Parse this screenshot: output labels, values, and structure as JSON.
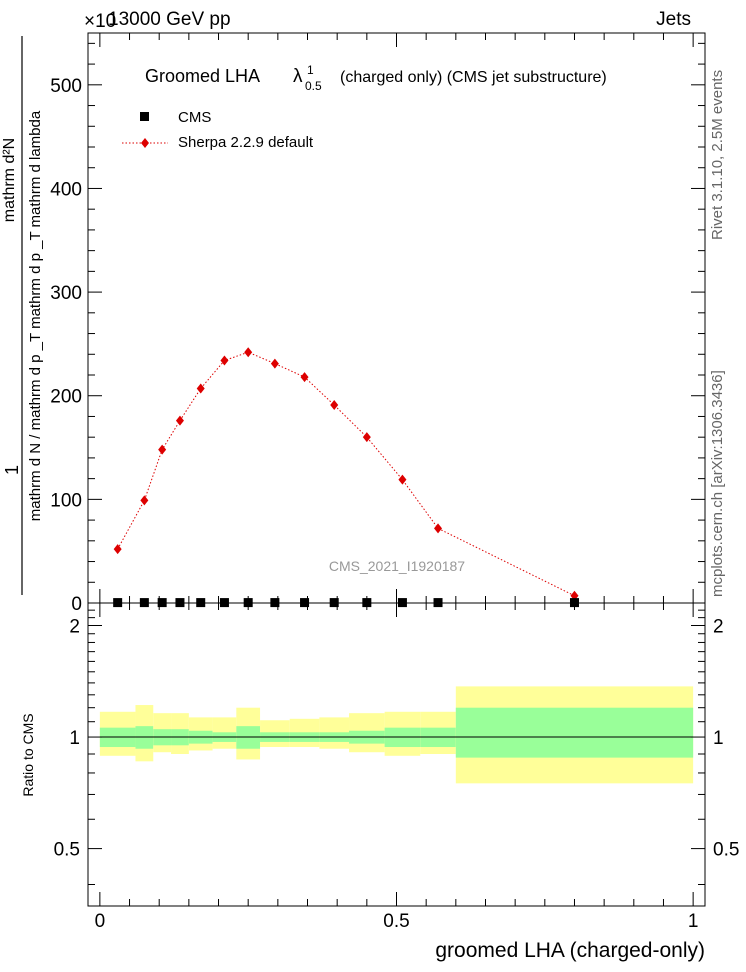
{
  "header": {
    "energy": "13000 GeV pp",
    "exponent": "×10",
    "process": "Jets",
    "side_label_top": "Rivet 3.1.10, 2.5M events",
    "side_label_bottom": "mcplots.cern.ch [arXiv:1306.3436]",
    "analysis_id": "CMS_2021_I1920187"
  },
  "chart_data": [
    {
      "type": "scatter",
      "title": "Groomed LHA",
      "title_symbol": "λ",
      "title_sup": "1",
      "title_sub": "0.5",
      "title_suffix": "(charged only) (CMS jet substructure)",
      "ylabel_num": "1",
      "ylabel_den": "mathrm d N / mathrm d p _T mathrm d p _T mathrm d lambda",
      "ylabel_top": "mathrm d²N",
      "ylabel_bottom": "mathrm d N / mathrm d p _T mathrm d p _T mathrm d lambda",
      "ylim": [
        0,
        550
      ],
      "xlim": [
        -0.02,
        1.02
      ],
      "yticks": [
        0,
        100,
        200,
        300,
        400,
        500
      ],
      "ytick_labels": [
        "0",
        "100",
        "200",
        "300",
        "400",
        "500"
      ],
      "legend_position": "top-left",
      "series": [
        {
          "name": "CMS",
          "color": "#000000",
          "marker": "square",
          "x": [
            0.03,
            0.075,
            0.105,
            0.135,
            0.17,
            0.21,
            0.25,
            0.295,
            0.345,
            0.395,
            0.45,
            0.51,
            0.57,
            0.8
          ],
          "values": [
            0.4,
            0.4,
            0.4,
            0.4,
            0.4,
            0.4,
            0.4,
            0.4,
            0.4,
            0.4,
            0.4,
            0.4,
            0.4,
            0.4
          ]
        },
        {
          "name": "Sherpa 2.2.9 default",
          "color": "#dd0000",
          "marker": "diamond",
          "line": "dotted",
          "x": [
            0.03,
            0.075,
            0.105,
            0.135,
            0.17,
            0.21,
            0.25,
            0.295,
            0.345,
            0.395,
            0.45,
            0.51,
            0.57,
            0.8
          ],
          "values": [
            52,
            99,
            148,
            176,
            207,
            234,
            242,
            231,
            218,
            191,
            160,
            119,
            72,
            7
          ],
          "errors": [
            3,
            3,
            4,
            4,
            4,
            4,
            4,
            4,
            4,
            3,
            3,
            3,
            3,
            2
          ]
        }
      ]
    },
    {
      "type": "area",
      "xlabel": "groomed LHA (charged-only)",
      "ylabel": "Ratio to CMS",
      "ylim": [
        0.35,
        2.3
      ],
      "xlim": [
        -0.02,
        1.02
      ],
      "yticks": [
        0.5,
        1,
        2
      ],
      "ytick_labels": [
        "0.5",
        "1",
        "2"
      ],
      "xticks": [
        0,
        0.5,
        1
      ],
      "xtick_labels": [
        "0",
        "0.5",
        "1"
      ],
      "bins": [
        0,
        0.06,
        0.09,
        0.12,
        0.15,
        0.19,
        0.23,
        0.27,
        0.32,
        0.37,
        0.42,
        0.48,
        0.54,
        0.6,
        1.0
      ],
      "inner_band": {
        "color": "#99ff99",
        "lo": [
          0.94,
          0.93,
          0.95,
          0.95,
          0.96,
          0.97,
          0.93,
          0.97,
          0.97,
          0.97,
          0.96,
          0.94,
          0.94,
          0.88
        ],
        "hi": [
          1.06,
          1.07,
          1.05,
          1.05,
          1.04,
          1.03,
          1.07,
          1.03,
          1.03,
          1.03,
          1.04,
          1.06,
          1.06,
          1.2
        ]
      },
      "outer_band": {
        "color": "#ffff99",
        "lo": [
          0.89,
          0.86,
          0.91,
          0.9,
          0.92,
          0.93,
          0.87,
          0.94,
          0.94,
          0.93,
          0.91,
          0.89,
          0.9,
          0.75
        ],
        "hi": [
          1.17,
          1.22,
          1.16,
          1.16,
          1.13,
          1.13,
          1.2,
          1.11,
          1.12,
          1.13,
          1.16,
          1.17,
          1.17,
          1.37
        ]
      },
      "reference_line": 1
    }
  ]
}
